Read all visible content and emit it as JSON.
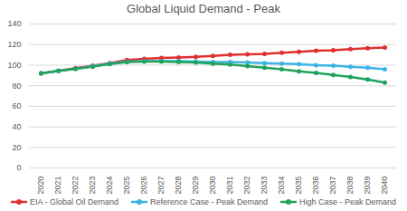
{
  "chart_data": {
    "type": "line",
    "title": "Global Liquid Demand - Peak",
    "categories": [
      "2020",
      "2021",
      "2022",
      "2023",
      "2024",
      "2025",
      "2026",
      "2027",
      "2028",
      "2029",
      "2030",
      "2031",
      "2032",
      "2033",
      "2034",
      "2035",
      "2036",
      "2037",
      "2038",
      "2039",
      "2040"
    ],
    "series": [
      {
        "name": "EIA - Global Oil Demand",
        "color": "#e03030",
        "marker": "circle",
        "values": [
          92,
          94.5,
          97,
          99.5,
          102,
          105,
          106,
          107,
          107.5,
          108,
          109,
          110,
          110.5,
          111,
          112,
          113,
          114,
          114.5,
          115.5,
          116.5,
          117
        ]
      },
      {
        "name": "Reference Case - Peak Demand",
        "color": "#3cb4e6",
        "marker": "circle",
        "values": [
          92,
          94.5,
          96.5,
          99,
          101.5,
          103.5,
          104,
          104,
          104,
          103.5,
          103,
          103,
          102.5,
          102,
          101.5,
          101,
          100,
          99.5,
          98.5,
          97.5,
          96
        ]
      },
      {
        "name": "High Case - Peak Demand",
        "color": "#21a35a",
        "marker": "circle",
        "values": [
          92,
          94.5,
          96.5,
          98.5,
          101,
          103,
          103.5,
          103.5,
          103,
          102.5,
          101.5,
          100.5,
          99,
          97.5,
          96,
          94,
          92.5,
          90.5,
          88.5,
          86,
          83
        ]
      }
    ],
    "ylim": [
      0,
      140
    ],
    "yticks": [
      0,
      20,
      40,
      60,
      80,
      100,
      120,
      140
    ],
    "grid": true,
    "legend": "bottom"
  }
}
